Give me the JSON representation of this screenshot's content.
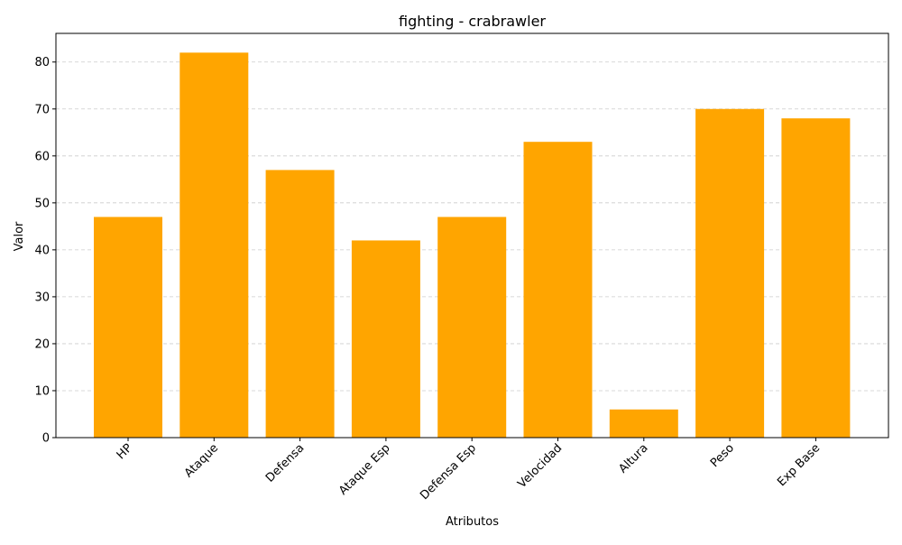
{
  "chart_data": {
    "type": "bar",
    "title": "fighting - crabrawler",
    "xlabel": "Atributos",
    "ylabel": "Valor",
    "categories": [
      "HP",
      "Ataque",
      "Defensa",
      "Ataque Esp",
      "Defensa Esp",
      "Velocidad",
      "Altura",
      "Peso",
      "Exp Base"
    ],
    "values": [
      47,
      82,
      57,
      42,
      47,
      63,
      6,
      70,
      68
    ],
    "ylim": [
      0,
      86.1
    ],
    "yticks": [
      0,
      10,
      20,
      30,
      40,
      50,
      60,
      70,
      80
    ],
    "bar_color": "#ffa500",
    "grid": "y-dashed",
    "x_tick_rotation_deg": 45
  }
}
